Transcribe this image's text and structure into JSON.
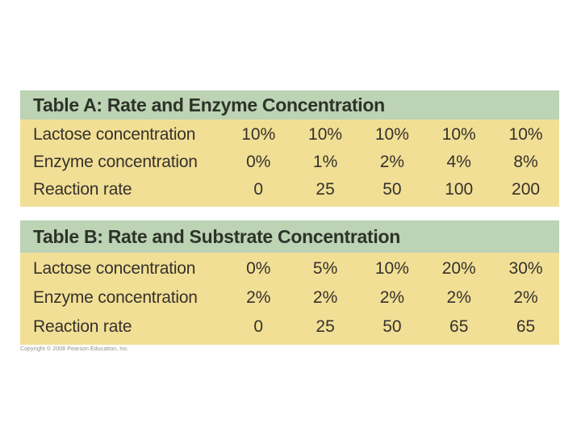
{
  "colors": {
    "header_green": "#bcd3b4",
    "body_yellow": "#f2df96",
    "title_text": "#2d3329",
    "body_text": "#35322b",
    "background": "#ffffff"
  },
  "tables": [
    {
      "title": "Table A: Rate and Enzyme Concentration",
      "rows": [
        {
          "label": "Lactose concentration",
          "values": [
            "10%",
            "10%",
            "10%",
            "10%",
            "10%"
          ]
        },
        {
          "label": "Enzyme concentration",
          "values": [
            "0%",
            "1%",
            "2%",
            "4%",
            "8%"
          ]
        },
        {
          "label": "Reaction rate",
          "values": [
            "0",
            "25",
            "50",
            "100",
            "200"
          ]
        }
      ]
    },
    {
      "title": "Table B: Rate and Substrate Concentration",
      "rows": [
        {
          "label": "Lactose concentration",
          "values": [
            "0%",
            "5%",
            "10%",
            "20%",
            "30%"
          ]
        },
        {
          "label": "Enzyme concentration",
          "values": [
            "2%",
            "2%",
            "2%",
            "2%",
            "2%"
          ]
        },
        {
          "label": "Reaction rate",
          "values": [
            "0",
            "25",
            "50",
            "65",
            "65"
          ]
        }
      ]
    }
  ],
  "copyright": "Copyright © 2008 Pearson Education, Inc.",
  "chart_data": [
    {
      "type": "table",
      "title": "Table A: Rate and Enzyme Concentration",
      "row_labels": [
        "Lactose concentration",
        "Enzyme concentration",
        "Reaction rate"
      ],
      "rows": [
        [
          "10%",
          "10%",
          "10%",
          "10%",
          "10%"
        ],
        [
          "0%",
          "1%",
          "2%",
          "4%",
          "8%"
        ],
        [
          0,
          25,
          50,
          100,
          200
        ]
      ]
    },
    {
      "type": "table",
      "title": "Table B: Rate and Substrate Concentration",
      "row_labels": [
        "Lactose concentration",
        "Enzyme concentration",
        "Reaction rate"
      ],
      "rows": [
        [
          "0%",
          "5%",
          "10%",
          "20%",
          "30%"
        ],
        [
          "2%",
          "2%",
          "2%",
          "2%",
          "2%"
        ],
        [
          0,
          25,
          50,
          65,
          65
        ]
      ]
    }
  ]
}
